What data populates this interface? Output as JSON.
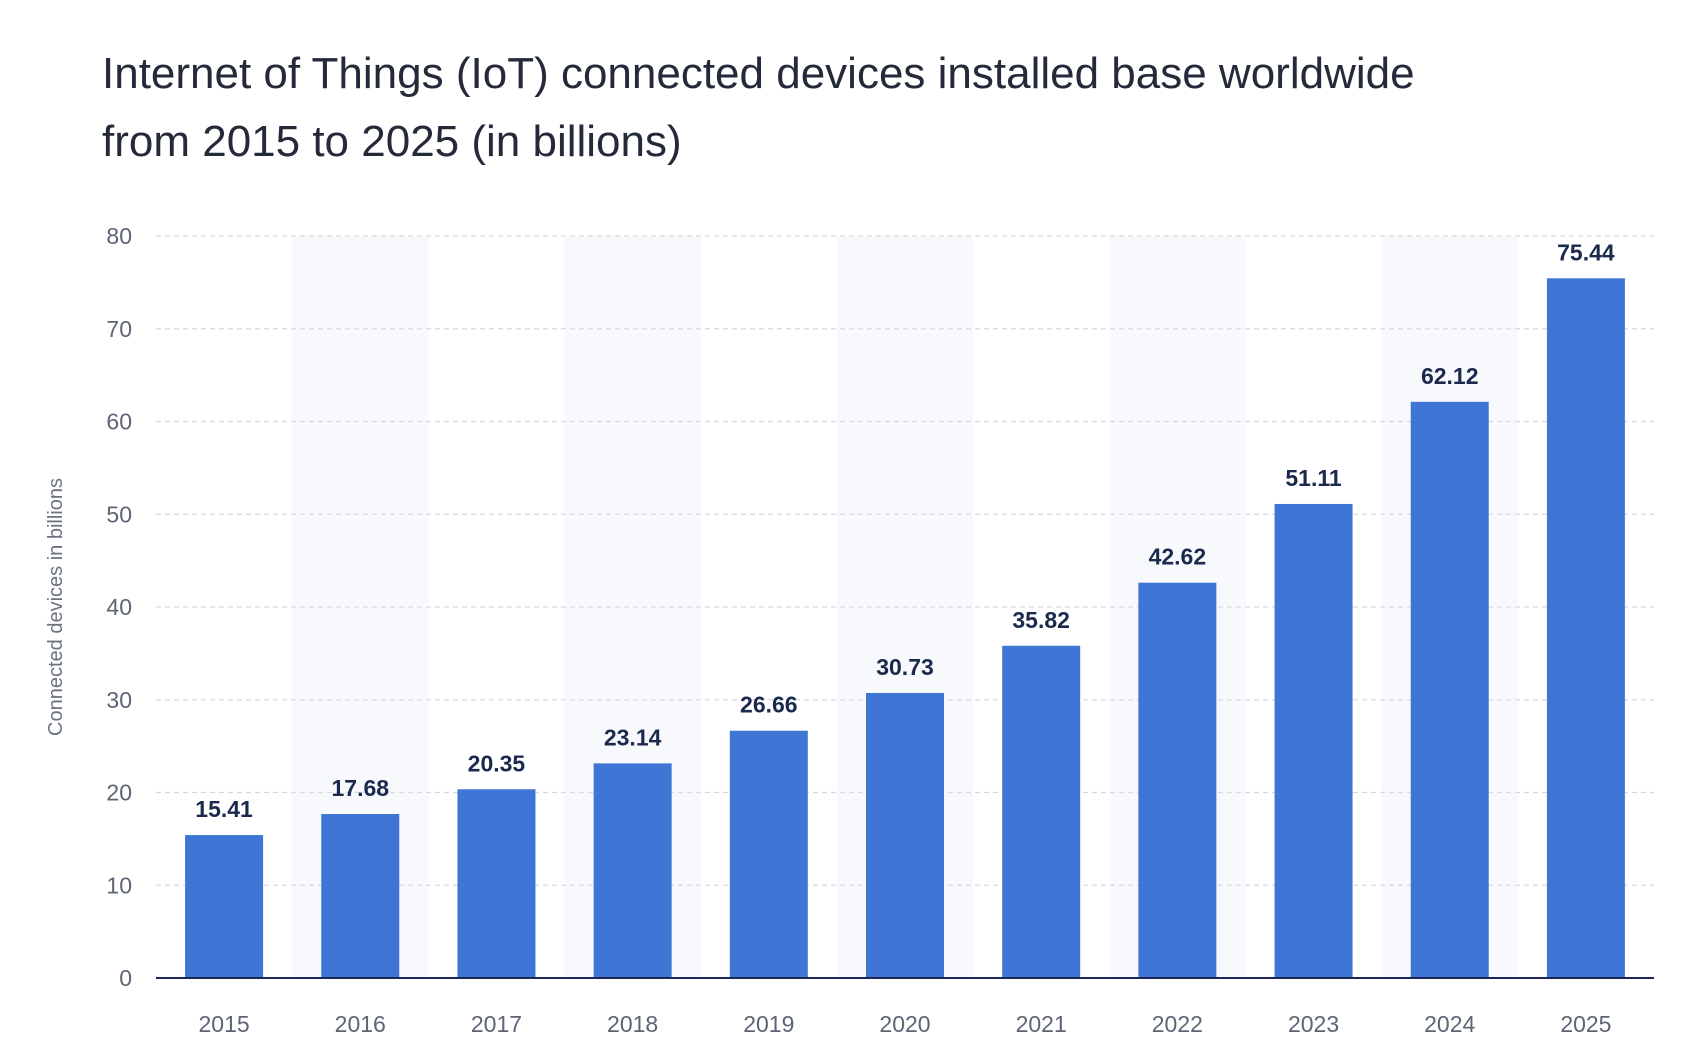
{
  "chart_data": {
    "type": "bar",
    "title_lines": [
      "Internet of Things (IoT) connected devices installed base worldwide",
      "from 2015 to 2025 (in billions)"
    ],
    "ylabel": "Connected devices in billions",
    "xlabel": "",
    "ylim": [
      0,
      80
    ],
    "yticks": [
      0,
      10,
      20,
      30,
      40,
      50,
      60,
      70,
      80
    ],
    "categories": [
      "2015",
      "2016",
      "2017",
      "2018",
      "2019",
      "2020",
      "2021",
      "2022",
      "2023",
      "2024",
      "2025"
    ],
    "values": [
      15.41,
      17.68,
      20.35,
      23.14,
      26.66,
      30.73,
      35.82,
      42.62,
      51.11,
      62.12,
      75.44
    ],
    "data_labels": [
      "15.41",
      "17.68",
      "20.35",
      "23.14",
      "26.66",
      "30.73",
      "35.82",
      "42.62",
      "51.11",
      "62.12",
      "75.44"
    ],
    "grid": true,
    "alternating_column_shading": true,
    "colors": {
      "bar": "#3f76d6",
      "band": "#f7f9fd",
      "grid": "#d6d9de",
      "axis": "#1c2757",
      "title": "#252a3a",
      "data_label": "#1b2a4c",
      "tick_label": "#5d6474"
    }
  }
}
